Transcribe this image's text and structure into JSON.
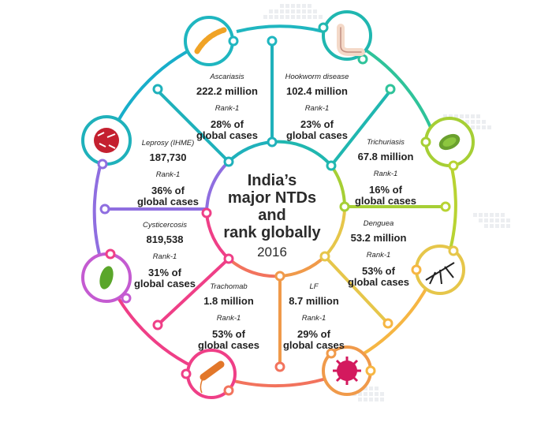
{
  "title": {
    "line1": "India’s",
    "line2": "major NTDs",
    "line3": "and",
    "line4": "rank globally",
    "year": "2016"
  },
  "diseases": [
    {
      "name": "Ascariasis",
      "cases": "222.2 million",
      "rank": "Rank-1",
      "share": "28% of",
      "share_tail": "global cases",
      "icon": "roundworm-icon",
      "color": "#1fb1bb"
    },
    {
      "name": "Hookworm disease",
      "cases": "102.4 million",
      "rank": "Rank-1",
      "share": "23% of",
      "share_tail": "global cases",
      "icon": "hookworm-icon",
      "color": "#20b7b0"
    },
    {
      "name": "Trichuriasis",
      "cases": "67.8 million",
      "rank": "Rank-1",
      "share": "16% of",
      "share_tail": "global cases",
      "icon": "whipworm-icon",
      "color": "#a6cf35"
    },
    {
      "name": "Denguea",
      "cases": "53.2 million",
      "rank": "Rank-1",
      "share": "53% of",
      "share_tail": "global cases",
      "icon": "mosquito-icon",
      "color": "#e6c64a"
    },
    {
      "name": "LF",
      "cases": "8.7 million",
      "rank": "Rank-1",
      "share": "29% of",
      "share_tail": "global cases",
      "icon": "virus-icon",
      "color": "#f09a4a"
    },
    {
      "name": "Trachomab",
      "cases": "1.8 million",
      "rank": "Rank-1",
      "share": "53% of",
      "share_tail": "global cases",
      "icon": "bacterium-icon",
      "color": "#ef3f87"
    },
    {
      "name": "Cysticercosis",
      "cases": "819,538",
      "rank": "Rank-1",
      "share": "31% of",
      "share_tail": "global cases",
      "icon": "cyst-icon",
      "color": "#c45bd1"
    },
    {
      "name": "Leprosy (IHME)",
      "cases": "187,730",
      "rank": "Rank-1",
      "share": "36% of",
      "share_tail": "global cases",
      "icon": "leprosy-bacteria-icon",
      "color": "#8f6ee0"
    }
  ]
}
